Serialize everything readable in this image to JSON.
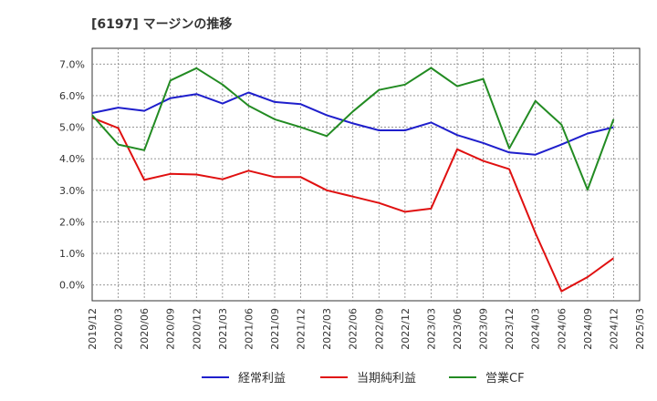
{
  "chart_data": {
    "type": "line",
    "title": "[6197]  マージンの推移",
    "x_ticks": [
      "2019/12",
      "2020/03",
      "2020/06",
      "2020/09",
      "2020/12",
      "2021/03",
      "2021/06",
      "2021/09",
      "2021/12",
      "2022/03",
      "2022/06",
      "2022/09",
      "2022/12",
      "2023/03",
      "2023/06",
      "2023/09",
      "2023/12",
      "2024/03",
      "2024/06",
      "2024/09",
      "2024/12",
      "2025/03"
    ],
    "x": [
      "2019/12",
      "2020/03",
      "2020/06",
      "2020/09",
      "2020/12",
      "2021/03",
      "2021/06",
      "2021/09",
      "2021/12",
      "2022/03",
      "2022/06",
      "2022/09",
      "2022/12",
      "2023/03",
      "2023/06",
      "2023/09",
      "2023/12",
      "2024/03",
      "2024/06",
      "2024/09",
      "2024/12"
    ],
    "y_ticks": [
      "7.0%",
      "6.0%",
      "5.0%",
      "4.0%",
      "3.0%",
      "2.0%",
      "1.0%",
      "0.0%"
    ],
    "y_tick_values": [
      7.0,
      6.0,
      5.0,
      4.0,
      3.0,
      2.0,
      1.0,
      0.0
    ],
    "ylim": [
      -0.5,
      7.5
    ],
    "grid": true,
    "legend_position": "bottom",
    "series": [
      {
        "name": "経常利益",
        "color": "#1f1fcc",
        "values": [
          5.45,
          5.62,
          5.52,
          5.92,
          6.05,
          5.75,
          6.1,
          5.8,
          5.73,
          5.38,
          5.12,
          4.9,
          4.9,
          5.15,
          4.75,
          4.5,
          4.2,
          4.13,
          4.45,
          4.8,
          5.0
        ]
      },
      {
        "name": "当期純利益",
        "color": "#e01010",
        "values": [
          5.3,
          4.97,
          3.33,
          3.52,
          3.5,
          3.35,
          3.62,
          3.42,
          3.42,
          3.0,
          2.8,
          2.6,
          2.32,
          2.42,
          4.3,
          3.93,
          3.67,
          1.65,
          -0.2,
          0.25,
          0.85
        ]
      },
      {
        "name": "営業CF",
        "color": "#228b22",
        "values": [
          5.38,
          4.45,
          4.27,
          6.48,
          6.87,
          6.35,
          5.68,
          5.25,
          5.0,
          4.72,
          5.5,
          6.18,
          6.35,
          6.88,
          6.3,
          6.53,
          4.33,
          5.83,
          5.08,
          3.02,
          5.25
        ]
      }
    ]
  }
}
